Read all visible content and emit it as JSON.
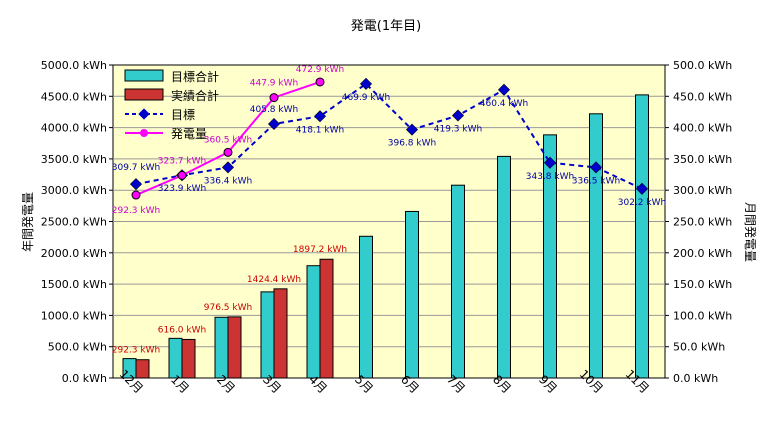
{
  "chart_data": {
    "type": "bar",
    "title": "発電(1年目)",
    "ylabel_left": "年間発電量",
    "ylabel_right": "月間発電量",
    "categories": [
      "12月",
      "1月",
      "2月",
      "3月",
      "4月",
      "5月",
      "6月",
      "7月",
      "8月",
      "9月",
      "10月",
      "11月"
    ],
    "left_axis": {
      "min": 0,
      "max": 5000,
      "step": 500,
      "ticks": [
        "0.0 kWh",
        "500.0 kWh",
        "1000.0 kWh",
        "1500.0 kWh",
        "2000.0 kWh",
        "2500.0 kWh",
        "3000.0 kWh",
        "3500.0 kWh",
        "4000.0 kWh",
        "4500.0 kWh",
        "5000.0 kWh"
      ]
    },
    "right_axis": {
      "min": 0,
      "max": 500,
      "step": 50,
      "ticks": [
        "0.0 kWh",
        "50.0 kWh",
        "100.0 kWh",
        "150.0 kWh",
        "200.0 kWh",
        "250.0 kWh",
        "300.0 kWh",
        "350.0 kWh",
        "400.0 kWh",
        "450.0 kWh",
        "500.0 kWh"
      ]
    },
    "legend": {
      "position": "top-left",
      "items": [
        "目標合計",
        "実績合計",
        "目標",
        "発電量"
      ]
    },
    "series": [
      {
        "name": "目標合計",
        "kind": "bar",
        "axis": "left",
        "color": "#33cccc",
        "values": [
          309.7,
          633.6,
          970.0,
          1375.8,
          1793.9,
          2263.8,
          2660.6,
          3079.9,
          3540.3,
          3884.1,
          4220.6,
          4522.8
        ]
      },
      {
        "name": "実績合計",
        "kind": "bar",
        "axis": "left",
        "color": "#cc3333",
        "values": [
          292.3,
          616.0,
          976.5,
          1424.4,
          1897.2,
          null,
          null,
          null,
          null,
          null,
          null,
          null
        ],
        "labels": [
          "292.3 kWh",
          "616.0 kWh",
          "976.5 kWh",
          "1424.4 kWh",
          "1897.2 kWh"
        ]
      },
      {
        "name": "目標",
        "kind": "line",
        "axis": "right",
        "color": "#0000cc",
        "values": [
          309.7,
          323.9,
          336.4,
          405.8,
          418.1,
          469.9,
          396.8,
          419.3,
          460.4,
          343.8,
          336.5,
          302.2
        ],
        "labels": [
          "309.7 kWh",
          "323.9 kWh",
          "336.4 kWh",
          "405.8 kWh",
          "418.1 kWh",
          "469.9 kWh",
          "396.8 kWh",
          "419.3 kWh",
          "460.4 kWh",
          "343.8 kWh",
          "336.5 kWh",
          "302.2 kWh"
        ]
      },
      {
        "name": "発電量",
        "kind": "line",
        "axis": "right",
        "color": "#ff00ff",
        "values": [
          292.3,
          323.7,
          360.5,
          447.9,
          472.9,
          null,
          null,
          null,
          null,
          null,
          null,
          null
        ],
        "labels": [
          "292.3 kWh",
          "323.7 kWh",
          "360.5 kWh",
          "447.9 kWh",
          "472.9 kWh"
        ]
      }
    ],
    "colors": {
      "plot_bg": "#ffffcc",
      "grid": "#999999"
    },
    "grid": true
  }
}
